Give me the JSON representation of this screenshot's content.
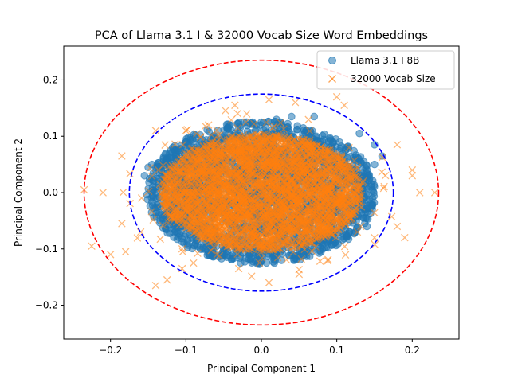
{
  "chart_data": {
    "type": "scatter",
    "title": "PCA of Llama 3.1 I & 32000 Vocab Size Word Embeddings",
    "xlabel": "Principal Component 1",
    "ylabel": "Principal Component 2",
    "xlim": [
      -0.262,
      0.262
    ],
    "ylim": [
      -0.26,
      0.26
    ],
    "x_ticks": [
      -0.2,
      -0.1,
      0.0,
      0.1,
      0.2
    ],
    "x_tick_labels": [
      "−0.2",
      "−0.1",
      "0.0",
      "0.1",
      "0.2"
    ],
    "y_ticks": [
      -0.2,
      -0.1,
      0.0,
      0.1,
      0.2
    ],
    "y_tick_labels": [
      "−0.2",
      "−0.1",
      "0.0",
      "0.1",
      "0.2"
    ],
    "grid": false,
    "legend_position": "top-right",
    "series": [
      {
        "name": "Llama 3.1 I 8B",
        "marker": "circle",
        "color": "#1f77b4",
        "spread": [
          0.155,
          0.13
        ],
        "points": [
          [
            -0.155,
            0.03
          ],
          [
            -0.15,
            0.045
          ],
          [
            -0.145,
            0.05
          ],
          [
            -0.12,
            0.075
          ],
          [
            -0.1,
            0.08
          ],
          [
            -0.13,
            0.06
          ],
          [
            0.04,
            0.135
          ],
          [
            0.0,
            0.125
          ],
          [
            0.02,
            0.13
          ],
          [
            0.07,
            0.135
          ],
          [
            0.13,
            0.105
          ],
          [
            0.15,
            0.085
          ],
          [
            0.16,
            0.065
          ],
          [
            0.15,
            0.05
          ],
          [
            0.14,
            -0.06
          ]
        ]
      },
      {
        "name": "32000 Vocab Size",
        "marker": "x",
        "color": "#ff7f0e",
        "spread": [
          0.18,
          0.13
        ],
        "points": [
          [
            -0.235,
            0.005
          ],
          [
            -0.21,
            0.0
          ],
          [
            -0.225,
            -0.095
          ],
          [
            -0.2,
            -0.11
          ],
          [
            -0.18,
            -0.105
          ],
          [
            -0.185,
            -0.055
          ],
          [
            -0.185,
            0.065
          ],
          [
            -0.16,
            -0.07
          ],
          [
            -0.14,
            -0.165
          ],
          [
            -0.125,
            -0.155
          ],
          [
            -0.105,
            -0.135
          ],
          [
            -0.09,
            -0.125
          ],
          [
            -0.14,
            0.11
          ],
          [
            -0.1,
            0.11
          ],
          [
            -0.07,
            0.12
          ],
          [
            -0.035,
            0.155
          ],
          [
            0.01,
            0.165
          ],
          [
            0.045,
            0.16
          ],
          [
            0.1,
            0.17
          ],
          [
            0.11,
            0.155
          ],
          [
            0.2,
            0.03
          ],
          [
            0.21,
            0.0
          ],
          [
            0.23,
            -0.0
          ],
          [
            0.19,
            -0.08
          ],
          [
            0.18,
            -0.06
          ],
          [
            0.2,
            0.04
          ],
          [
            0.18,
            0.085
          ],
          [
            0.01,
            -0.16
          ],
          [
            -0.03,
            -0.135
          ],
          [
            0.05,
            -0.145
          ],
          [
            0.15,
            -0.08
          ]
        ]
      }
    ],
    "ellipses": [
      {
        "color": "#0000ff",
        "rx": 0.175,
        "ry": 0.175,
        "style": "dashed"
      },
      {
        "color": "#ff0000",
        "rx": 0.235,
        "ry": 0.235,
        "style": "dashed"
      }
    ]
  }
}
